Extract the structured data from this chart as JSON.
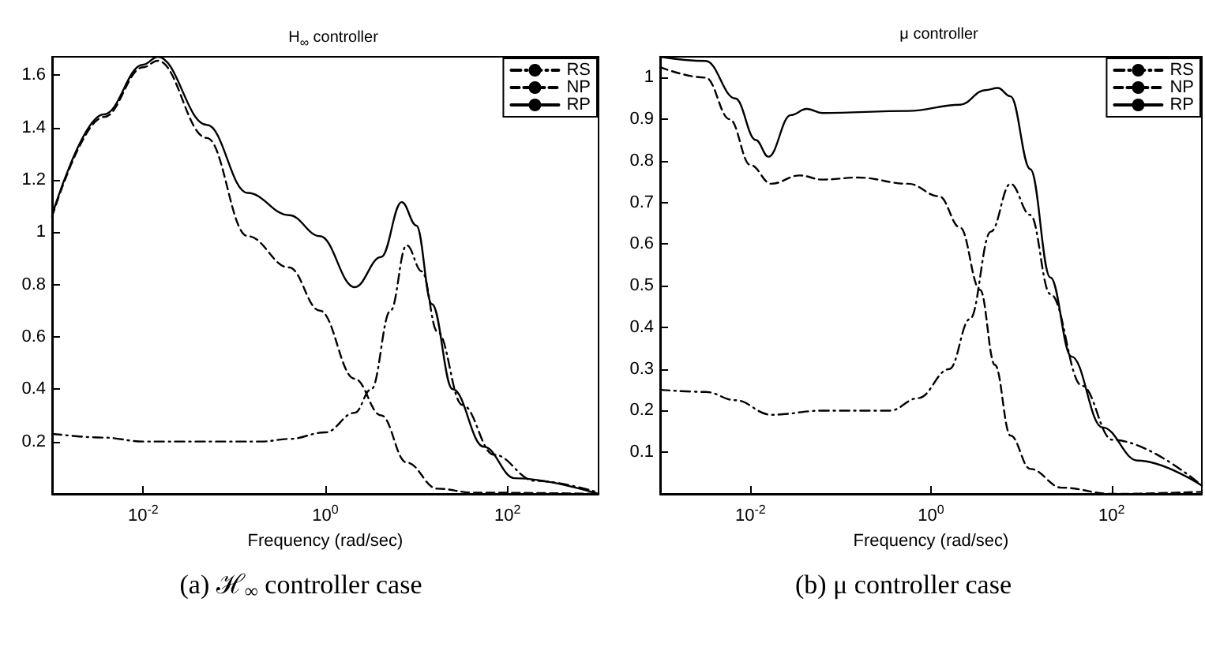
{
  "chart_data": [
    {
      "type": "line",
      "title": "H$_{∞}$ controller",
      "xlabel": "Frequency (rad/sec)",
      "annotations": [
        "(a) ℋ$_{∞}$ controller case"
      ],
      "log": "x",
      "xlim": [
        0.001,
        1000
      ],
      "xticks": [
        {
          "value": 0.01,
          "label": "10$^{-2}$"
        },
        {
          "value": 1,
          "label": "10$^{0}$"
        },
        {
          "value": 100,
          "label": "10$^{2}$"
        }
      ],
      "ylim": [
        0,
        1.67
      ],
      "yticks": [
        0.2,
        0.4,
        0.6,
        0.8,
        1,
        1.2,
        1.4,
        1.6
      ],
      "grid": false,
      "legend": "top right",
      "marker": "none",
      "series": [
        {
          "name": "RS",
          "color": "#000000",
          "line_style": "dashdot",
          "x": [
            0.001,
            0.0037,
            0.01,
            0.2,
            0.4,
            1,
            2.1,
            3.2,
            5.2,
            7.8,
            11.5,
            17,
            32,
            71,
            200,
            1000
          ],
          "values": [
            0.23,
            0.215,
            0.2,
            0.2,
            0.21,
            0.235,
            0.31,
            0.4,
            0.7,
            0.95,
            0.85,
            0.62,
            0.34,
            0.15,
            0.05,
            0.005
          ]
        },
        {
          "name": "NP",
          "color": "#000000",
          "line_style": "dashed",
          "x": [
            0.001,
            0.0037,
            0.01,
            0.0145,
            0.05,
            0.14,
            0.4,
            0.87,
            2.1,
            4.1,
            7.8,
            17,
            42,
            1000
          ],
          "values": [
            1.06,
            1.44,
            1.63,
            1.655,
            1.36,
            0.985,
            0.865,
            0.7,
            0.44,
            0.3,
            0.12,
            0.02,
            0.005,
            0
          ]
        },
        {
          "name": "RP",
          "color": "#000000",
          "line_style": "solid",
          "x": [
            0.001,
            0.0037,
            0.01,
            0.0145,
            0.05,
            0.14,
            0.4,
            0.87,
            2.1,
            4.1,
            6.9,
            10,
            14.8,
            25,
            55,
            120,
            1000
          ],
          "values": [
            1.065,
            1.45,
            1.64,
            1.67,
            1.41,
            1.15,
            1.065,
            0.985,
            0.79,
            0.905,
            1.115,
            1.025,
            0.725,
            0.4,
            0.18,
            0.06,
            0
          ]
        }
      ]
    },
    {
      "type": "line",
      "title": "μ controller",
      "xlabel": "Frequency (rad/sec)",
      "annotations": [
        "(b) μ controller case"
      ],
      "log": "x",
      "xlim": [
        0.001,
        1000
      ],
      "xticks": [
        {
          "value": 0.01,
          "label": "10$^{-2}$"
        },
        {
          "value": 1,
          "label": "10$^{0}$"
        },
        {
          "value": 100,
          "label": "10$^{2}$"
        }
      ],
      "ylim": [
        0,
        1.05
      ],
      "yticks": [
        0.1,
        0.2,
        0.3,
        0.4,
        0.5,
        0.6,
        0.7,
        0.8,
        0.9,
        1
      ],
      "grid": false,
      "legend": "top right",
      "marker": "none",
      "series": [
        {
          "name": "RS",
          "color": "#000000",
          "line_style": "dashdot",
          "x": [
            0.001,
            0.0032,
            0.0068,
            0.017,
            0.063,
            0.35,
            0.72,
            1.6,
            2.7,
            4.6,
            7.6,
            12.6,
            21,
            47,
            102,
            1000
          ],
          "values": [
            0.25,
            0.245,
            0.225,
            0.19,
            0.2,
            0.2,
            0.23,
            0.3,
            0.42,
            0.63,
            0.745,
            0.67,
            0.48,
            0.26,
            0.13,
            0.02
          ]
        },
        {
          "name": "NP",
          "color": "#000000",
          "line_style": "dashed",
          "x": [
            0.001,
            0.0032,
            0.0059,
            0.01,
            0.017,
            0.035,
            0.063,
            0.155,
            0.56,
            1.23,
            2.1,
            3.5,
            5.1,
            7.6,
            12.6,
            28,
            100,
            1000
          ],
          "values": [
            1.025,
            1,
            0.9,
            0.79,
            0.745,
            0.765,
            0.755,
            0.76,
            0.745,
            0.715,
            0.64,
            0.49,
            0.31,
            0.14,
            0.06,
            0.015,
            0,
            0.005
          ]
        },
        {
          "name": "RP",
          "color": "#000000",
          "line_style": "solid",
          "x": [
            0.001,
            0.0032,
            0.0068,
            0.0115,
            0.0158,
            0.028,
            0.042,
            0.063,
            0.56,
            2.1,
            4,
            5.5,
            7.6,
            12.6,
            21,
            36,
            79,
            195,
            1000
          ],
          "values": [
            1.05,
            1.04,
            0.95,
            0.85,
            0.81,
            0.91,
            0.925,
            0.915,
            0.92,
            0.935,
            0.97,
            0.975,
            0.955,
            0.78,
            0.52,
            0.33,
            0.16,
            0.08,
            0.02
          ]
        }
      ]
    }
  ]
}
